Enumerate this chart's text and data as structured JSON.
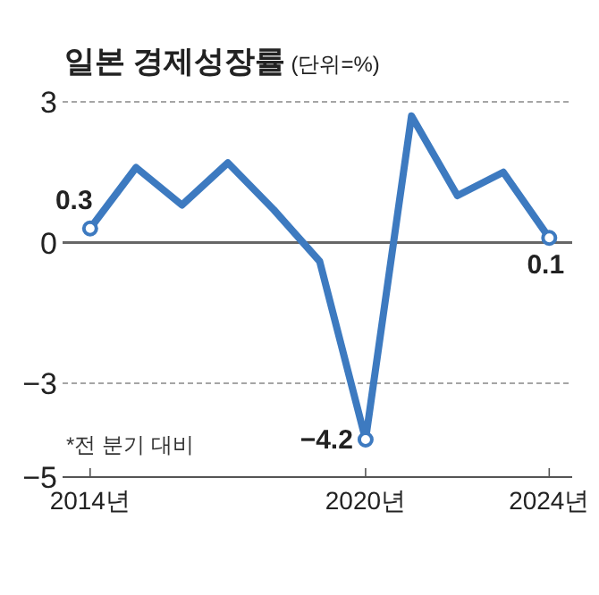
{
  "chart_data": {
    "type": "line",
    "title": "일본 경제성장률",
    "subtitle": "(단위=%)",
    "x": [
      2014,
      2015,
      2016,
      2017,
      2018,
      2019,
      2020,
      2021,
      2022,
      2023,
      2024
    ],
    "series": [
      {
        "color": "#3d7ac0",
        "values": [
          0.3,
          1.6,
          0.8,
          1.7,
          0.7,
          -0.4,
          -4.2,
          2.7,
          1.0,
          1.5,
          0.1
        ],
        "value_labels": [
          "0.3",
          null,
          null,
          null,
          null,
          null,
          "−4.2",
          null,
          null,
          null,
          "0.1"
        ]
      }
    ],
    "xlim": [
      2013.4,
      2024.5
    ],
    "xticks": [
      {
        "value": 2014,
        "label": "2014년"
      },
      {
        "value": 2020,
        "label": "2020년"
      },
      {
        "value": 2024,
        "label": "2024년"
      }
    ],
    "ylim": [
      -5,
      3
    ],
    "yticks": [
      {
        "value": 3,
        "label": "3"
      },
      {
        "value": 0,
        "label": "0"
      },
      {
        "value": -3,
        "label": "−3"
      },
      {
        "value": -5,
        "label": "−5"
      }
    ],
    "ref_lines": [
      {
        "axis": "y",
        "value": 3,
        "color": "#888888",
        "line_style": "dashed"
      },
      {
        "axis": "y",
        "value": 0,
        "color": "#666666",
        "line_style": "solid"
      },
      {
        "axis": "y",
        "value": -3,
        "color": "#888888",
        "line_style": "dashed"
      }
    ],
    "annotations": [
      "*전 분기 대비"
    ]
  }
}
